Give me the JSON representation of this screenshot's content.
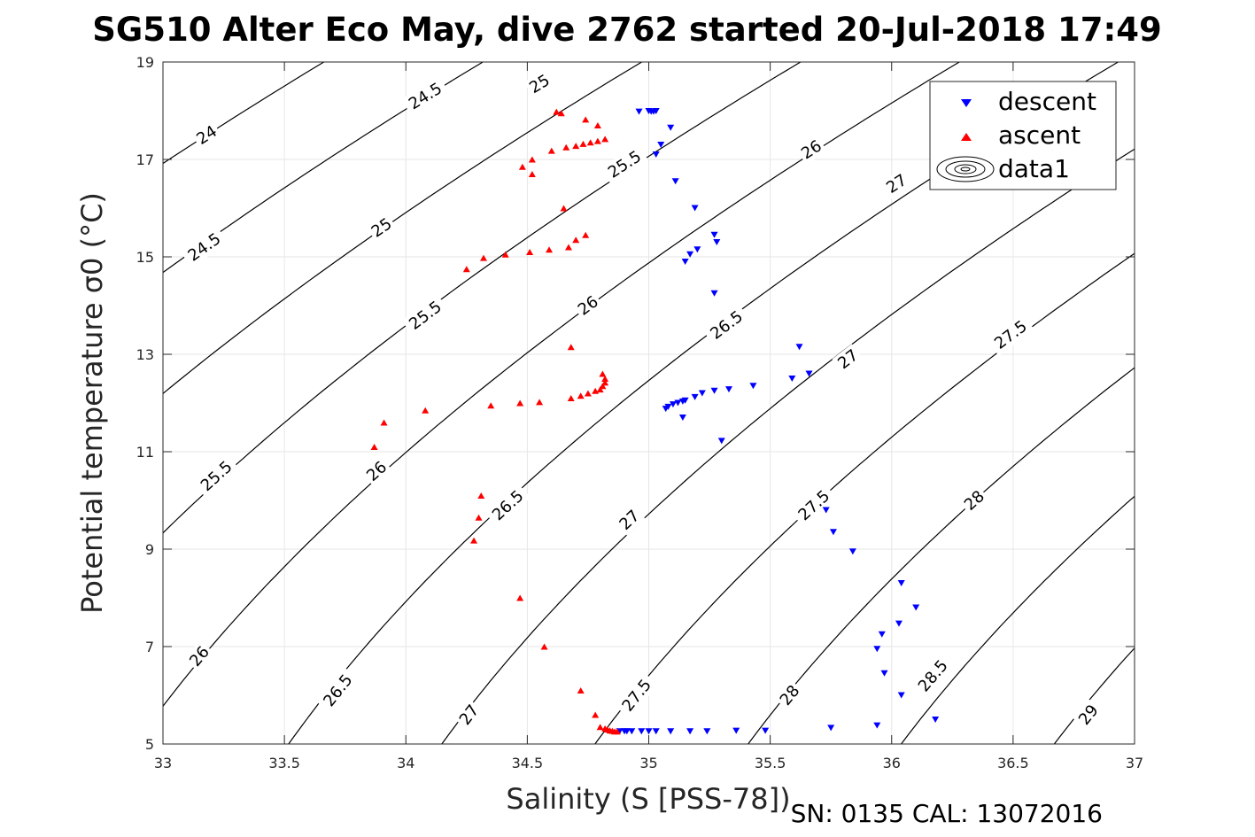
{
  "chart_data": {
    "type": "scatter",
    "title": "SG510 Alter Eco May, dive 2762 started 20-Jul-2018 17:49",
    "xlabel": "Salinity (S [PSS-78])",
    "ylabel": "Potential temperature σ0 (°C)",
    "xlim": [
      33,
      37
    ],
    "ylim": [
      5,
      19
    ],
    "xticks": [
      33,
      33.5,
      34,
      34.5,
      35,
      35.5,
      36,
      36.5,
      37
    ],
    "xtick_labels": [
      "33",
      "33.5",
      "34",
      "34.5",
      "35",
      "35.5",
      "36",
      "36.5",
      "37"
    ],
    "yticks": [
      5,
      7,
      9,
      11,
      13,
      15,
      17,
      19
    ],
    "ytick_labels": [
      "5",
      "7",
      "9",
      "11",
      "13",
      "15",
      "17",
      "19"
    ],
    "grid": true,
    "legend_position": "top-right",
    "legend": [
      {
        "label": "descent",
        "marker": "triangle-down",
        "color": "#0000ff"
      },
      {
        "label": "ascent",
        "marker": "triangle-up",
        "color": "#ff0000"
      },
      {
        "label": "data1",
        "marker": "contour",
        "color": "#000000"
      }
    ],
    "footer": "SN: 0135  CAL: 13072016",
    "contour_levels": [
      24,
      24.5,
      25,
      25.5,
      26,
      26.5,
      27,
      27.5,
      28,
      28.5,
      29
    ],
    "contour_labels": [
      {
        "text": "24",
        "s": 33.18,
        "t": 17.5
      },
      {
        "text": "24.5",
        "s": 34.08,
        "t": 18.3
      },
      {
        "text": "25",
        "s": 34.55,
        "t": 18.55
      },
      {
        "text": "24.5",
        "s": 33.17,
        "t": 15.2
      },
      {
        "text": "25",
        "s": 33.9,
        "t": 15.6
      },
      {
        "text": "25.5",
        "s": 34.9,
        "t": 16.9
      },
      {
        "text": "26",
        "s": 35.67,
        "t": 17.2
      },
      {
        "text": "25.5",
        "s": 33.22,
        "t": 10.5
      },
      {
        "text": "25.5",
        "s": 34.08,
        "t": 13.8
      },
      {
        "text": "26",
        "s": 34.75,
        "t": 14.0
      },
      {
        "text": "26.5",
        "s": 35.32,
        "t": 13.6
      },
      {
        "text": "27",
        "s": 36.02,
        "t": 16.5
      },
      {
        "text": "26",
        "s": 33.15,
        "t": 6.8
      },
      {
        "text": "26",
        "s": 33.88,
        "t": 10.6
      },
      {
        "text": "26.5",
        "s": 34.42,
        "t": 9.9
      },
      {
        "text": "27",
        "s": 35.82,
        "t": 12.9
      },
      {
        "text": "27.5",
        "s": 36.49,
        "t": 13.4
      },
      {
        "text": "26.5",
        "s": 33.72,
        "t": 6.1
      },
      {
        "text": "27",
        "s": 34.92,
        "t": 9.6
      },
      {
        "text": "27.5",
        "s": 35.68,
        "t": 9.9
      },
      {
        "text": "28",
        "s": 36.34,
        "t": 10.0
      },
      {
        "text": "27",
        "s": 34.26,
        "t": 5.6
      },
      {
        "text": "27.5",
        "s": 34.95,
        "t": 6.0
      },
      {
        "text": "28",
        "s": 35.58,
        "t": 6.0
      },
      {
        "text": "28.5",
        "s": 36.17,
        "t": 6.4
      },
      {
        "text": "29",
        "s": 36.81,
        "t": 5.6
      }
    ],
    "series": [
      {
        "name": "descent",
        "color": "#0000ff",
        "marker": "triangle-down",
        "points": [
          [
            34.96,
            17.98
          ],
          [
            35.0,
            17.99
          ],
          [
            35.01,
            17.98
          ],
          [
            35.02,
            17.98
          ],
          [
            35.03,
            17.99
          ],
          [
            35.09,
            17.65
          ],
          [
            35.05,
            17.3
          ],
          [
            35.03,
            17.1
          ],
          [
            35.11,
            16.55
          ],
          [
            35.19,
            16.0
          ],
          [
            35.27,
            15.45
          ],
          [
            35.28,
            15.3
          ],
          [
            35.2,
            15.15
          ],
          [
            35.17,
            15.05
          ],
          [
            35.15,
            14.9
          ],
          [
            35.27,
            14.25
          ],
          [
            35.62,
            13.15
          ],
          [
            35.66,
            12.6
          ],
          [
            35.59,
            12.5
          ],
          [
            35.43,
            12.35
          ],
          [
            35.33,
            12.28
          ],
          [
            35.27,
            12.25
          ],
          [
            35.22,
            12.2
          ],
          [
            35.19,
            12.12
          ],
          [
            35.15,
            12.05
          ],
          [
            35.14,
            12.03
          ],
          [
            35.12,
            12.0
          ],
          [
            35.1,
            11.97
          ],
          [
            35.08,
            11.92
          ],
          [
            35.07,
            11.88
          ],
          [
            35.14,
            11.7
          ],
          [
            35.3,
            11.22
          ],
          [
            35.73,
            9.8
          ],
          [
            35.76,
            9.35
          ],
          [
            35.84,
            8.95
          ],
          [
            36.04,
            8.3
          ],
          [
            36.1,
            7.8
          ],
          [
            36.03,
            7.47
          ],
          [
            35.96,
            7.25
          ],
          [
            35.94,
            6.95
          ],
          [
            35.97,
            6.45
          ],
          [
            36.04,
            6.0
          ],
          [
            36.18,
            5.5
          ],
          [
            35.75,
            5.33
          ],
          [
            35.94,
            5.38
          ],
          [
            35.48,
            5.27
          ],
          [
            35.36,
            5.27
          ],
          [
            35.24,
            5.26
          ],
          [
            35.17,
            5.26
          ],
          [
            35.09,
            5.26
          ],
          [
            35.03,
            5.26
          ],
          [
            35.0,
            5.26
          ],
          [
            34.97,
            5.26
          ],
          [
            34.93,
            5.26
          ],
          [
            34.91,
            5.26
          ],
          [
            34.9,
            5.26
          ],
          [
            34.88,
            5.26
          ]
        ]
      },
      {
        "name": "ascent",
        "color": "#ff0000",
        "marker": "triangle-up",
        "points": [
          [
            34.62,
            17.98
          ],
          [
            34.64,
            17.95
          ],
          [
            34.74,
            17.82
          ],
          [
            34.79,
            17.7
          ],
          [
            34.82,
            17.42
          ],
          [
            34.79,
            17.38
          ],
          [
            34.76,
            17.35
          ],
          [
            34.73,
            17.32
          ],
          [
            34.7,
            17.28
          ],
          [
            34.66,
            17.25
          ],
          [
            34.6,
            17.18
          ],
          [
            34.52,
            17.0
          ],
          [
            34.48,
            16.85
          ],
          [
            34.52,
            16.7
          ],
          [
            34.65,
            16.0
          ],
          [
            34.74,
            15.45
          ],
          [
            34.7,
            15.35
          ],
          [
            34.67,
            15.2
          ],
          [
            34.59,
            15.15
          ],
          [
            34.51,
            15.1
          ],
          [
            34.41,
            15.05
          ],
          [
            34.32,
            14.98
          ],
          [
            34.25,
            14.75
          ],
          [
            34.68,
            13.15
          ],
          [
            34.81,
            12.6
          ],
          [
            34.82,
            12.5
          ],
          [
            34.82,
            12.42
          ],
          [
            34.81,
            12.35
          ],
          [
            34.8,
            12.28
          ],
          [
            34.78,
            12.25
          ],
          [
            34.75,
            12.2
          ],
          [
            34.72,
            12.15
          ],
          [
            34.68,
            12.1
          ],
          [
            34.55,
            12.02
          ],
          [
            34.47,
            12.0
          ],
          [
            34.35,
            11.95
          ],
          [
            34.08,
            11.85
          ],
          [
            33.91,
            11.6
          ],
          [
            33.87,
            11.1
          ],
          [
            34.31,
            10.1
          ],
          [
            34.3,
            9.65
          ],
          [
            34.28,
            9.18
          ],
          [
            34.47,
            8.0
          ],
          [
            34.57,
            7.0
          ],
          [
            34.72,
            6.1
          ],
          [
            34.78,
            5.6
          ],
          [
            34.8,
            5.35
          ],
          [
            34.82,
            5.32
          ],
          [
            34.83,
            5.3
          ],
          [
            34.84,
            5.28
          ],
          [
            34.85,
            5.27
          ],
          [
            34.86,
            5.26
          ],
          [
            34.87,
            5.26
          ]
        ]
      }
    ]
  }
}
